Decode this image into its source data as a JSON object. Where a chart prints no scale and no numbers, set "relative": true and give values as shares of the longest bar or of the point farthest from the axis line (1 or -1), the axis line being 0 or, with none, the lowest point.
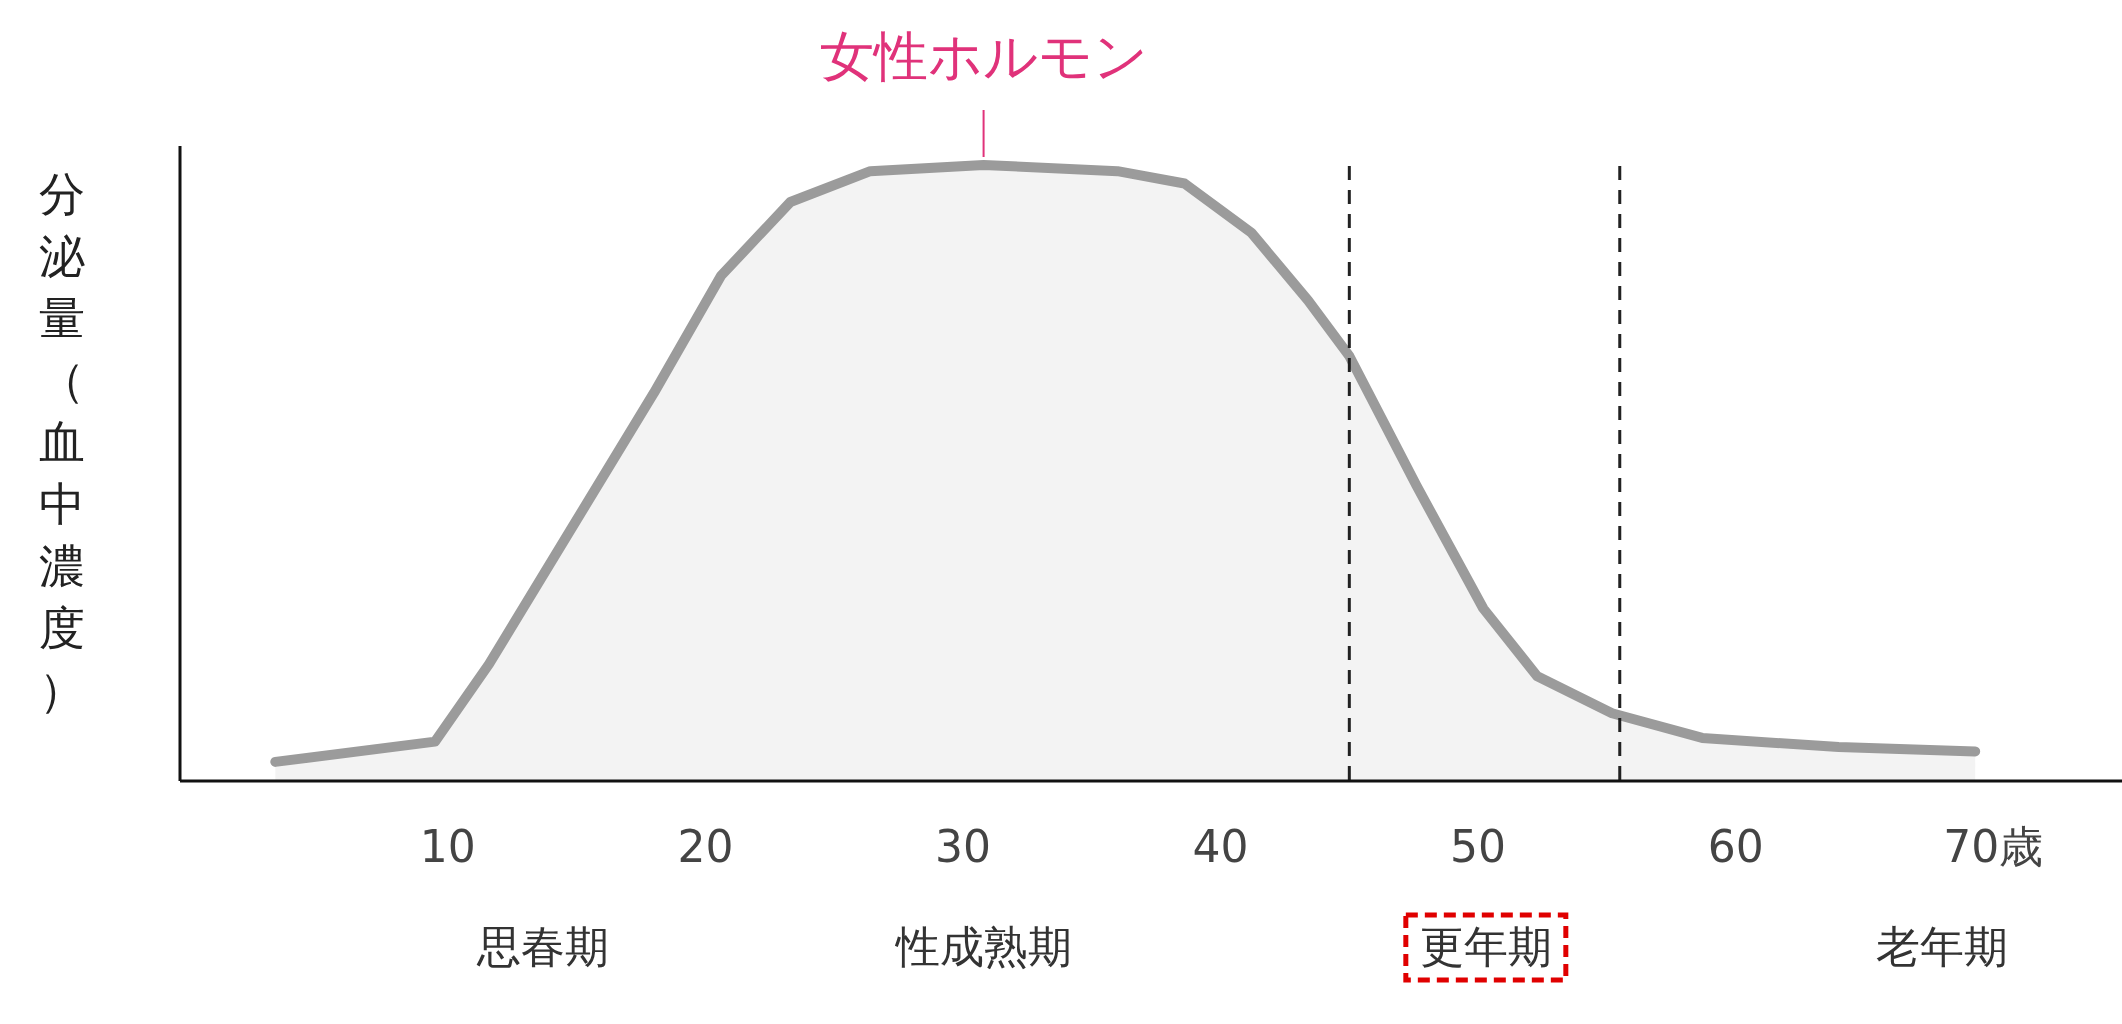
{
  "chart_data": {
    "type": "area",
    "relative": true,
    "ylabel": "分泌量（血中濃度）",
    "x": [
      3.3,
      9.5,
      11.6,
      14.8,
      18,
      20.6,
      23.3,
      26.4,
      30.8,
      36,
      38.6,
      41.2,
      43.4,
      45,
      47.6,
      50.2,
      52.3,
      55.2,
      58.7,
      64,
      69.3
    ],
    "series": [
      {
        "color": "#9b9b9b",
        "values": [
          0.031,
          0.064,
          0.19,
          0.41,
          0.63,
          0.82,
          0.94,
          0.99,
          1.0,
          0.99,
          0.97,
          0.89,
          0.78,
          0.69,
          0.48,
          0.28,
          0.17,
          0.11,
          0.07,
          0.055,
          0.048
        ]
      }
    ],
    "xlim": [
      -0.4,
      75
    ],
    "xticks": [
      10,
      20,
      30,
      40,
      50,
      60,
      {
        "value": 70,
        "label": "70歳"
      }
    ],
    "ref_lines": [
      {
        "axis": "x",
        "value": 45,
        "line_style": "dashed",
        "color": "#222222"
      },
      {
        "axis": "x",
        "value": 55.5,
        "line_style": "dashed",
        "color": "#222222"
      }
    ],
    "annotations": [
      {
        "text": "女性ホルモン",
        "x": 30.8,
        "y": 1.0
      },
      "思春期",
      "性成熟期",
      "更年期",
      "老年期"
    ]
  }
}
